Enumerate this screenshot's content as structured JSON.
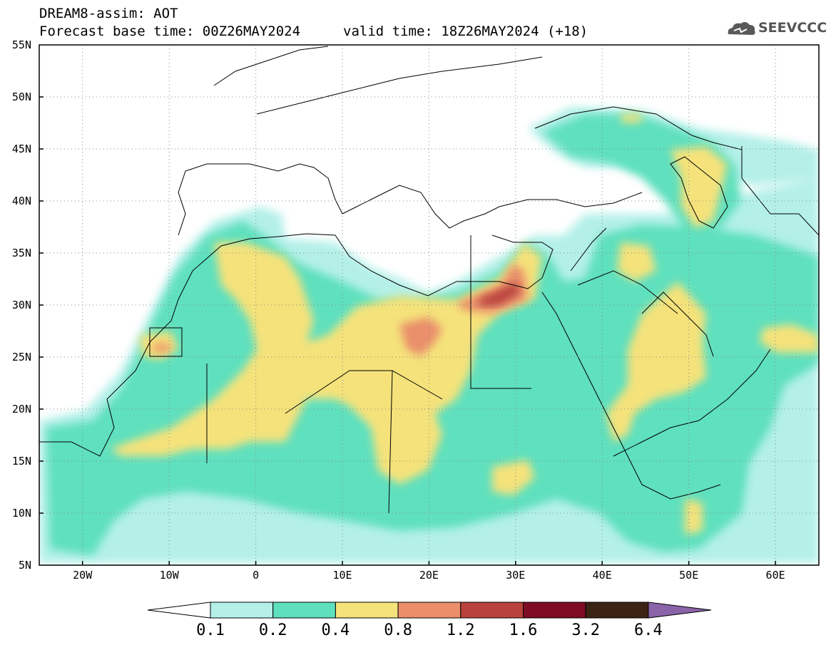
{
  "header": {
    "title": "DREAM8-assim: AOT",
    "base_time": "Forecast base time: 00Z26MAY2024",
    "valid_time": "valid time: 18Z26MAY2024 (+18)",
    "logo_text": "SEEVCCC"
  },
  "map": {
    "lat_range": [
      5,
      55
    ],
    "lon_range": [
      -25,
      65
    ],
    "lat_labels": [
      "55N",
      "50N",
      "45N",
      "40N",
      "35N",
      "30N",
      "25N",
      "20N",
      "15N",
      "10N",
      "5N"
    ],
    "lon_labels": [
      "20W",
      "10W",
      "0",
      "10E",
      "20E",
      "30E",
      "40E",
      "50E",
      "60E"
    ],
    "grid": true,
    "variable": "AOT"
  },
  "colorbar": {
    "levels": [
      "0.1",
      "0.2",
      "0.4",
      "0.8",
      "1.2",
      "1.6",
      "3.2",
      "6.4"
    ],
    "colors": [
      "#b4f0e8",
      "#5ee0be",
      "#f5e27a",
      "#ea8f6a",
      "#b9433c",
      "#7d0c24",
      "#3c2415",
      "#8a63a8"
    ]
  }
}
